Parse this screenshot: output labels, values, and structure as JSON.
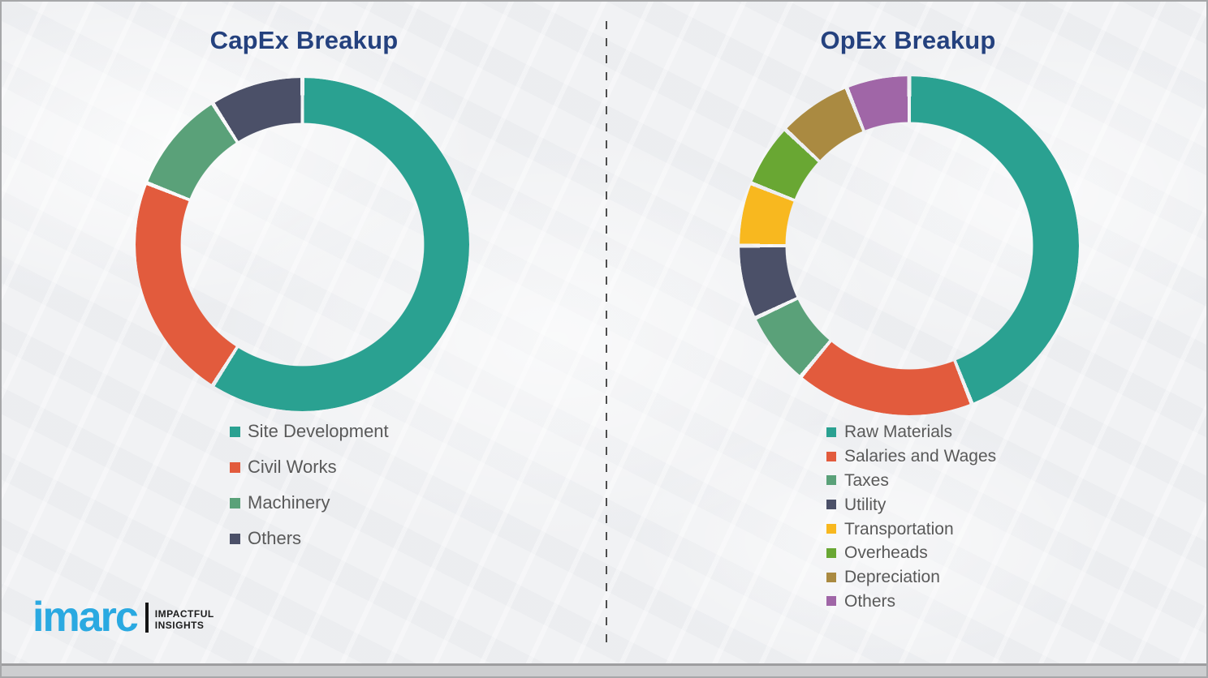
{
  "theme": {
    "title_color": "#24417e",
    "legend_text_color": "#595959",
    "background_color": "#f1f2f4",
    "divider_color": "#4e4e4e"
  },
  "chart_data": [
    {
      "type": "pie",
      "subtype": "donut",
      "title": "CapEx Breakup",
      "labels": [
        "Site Development",
        "Civil Works",
        "Machinery",
        "Others"
      ],
      "values": [
        59,
        22,
        10,
        9
      ],
      "colors": [
        "#2aa191",
        "#e25b3d",
        "#5aa179",
        "#4b5068"
      ],
      "start_angle_deg": 0,
      "direction": "clockwise",
      "hole_ratio": 0.73,
      "legend_position": "below-left"
    },
    {
      "type": "pie",
      "subtype": "donut",
      "title": "OpEx Breakup",
      "labels": [
        "Raw Materials",
        "Salaries and Wages",
        "Taxes",
        "Utility",
        "Transportation",
        "Overheads",
        "Depreciation",
        "Others"
      ],
      "values": [
        44,
        17,
        7,
        7,
        6,
        6,
        7,
        6
      ],
      "colors": [
        "#2aa191",
        "#e25b3d",
        "#5aa179",
        "#4b5068",
        "#f8b81f",
        "#69a733",
        "#aa8a41",
        "#a066a7"
      ],
      "start_angle_deg": 0,
      "direction": "clockwise",
      "hole_ratio": 0.73,
      "legend_position": "below-left"
    }
  ],
  "logo": {
    "wordmark": "imarc",
    "tagline_line1": "IMPACTFUL",
    "tagline_line2": "INSIGHTS",
    "color": "#2aa9e1"
  }
}
